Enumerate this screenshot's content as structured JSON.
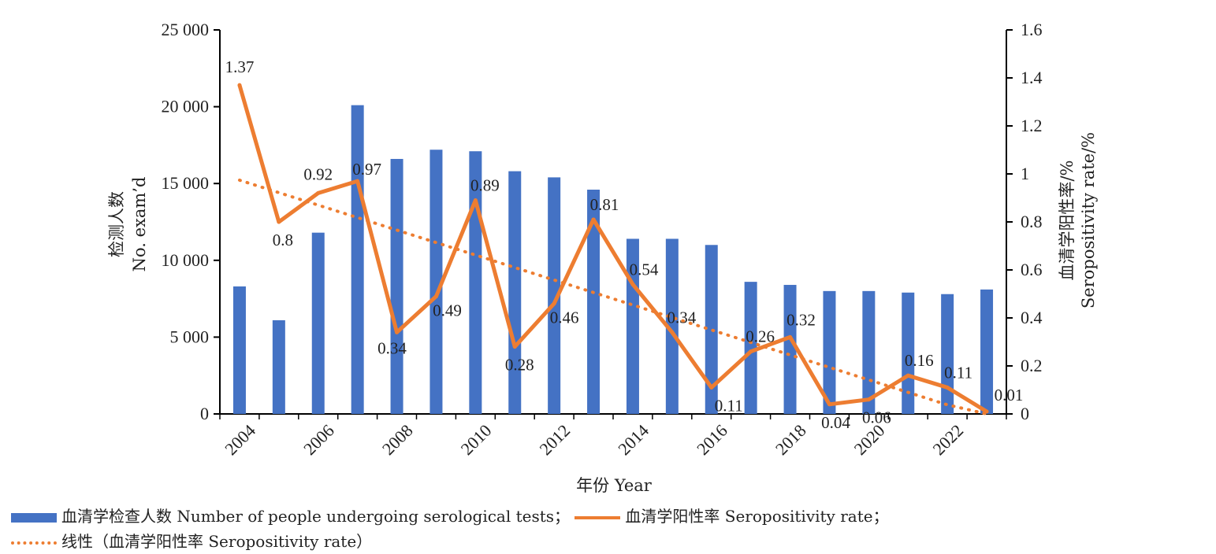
{
  "colors": {
    "bar": "#4472C4",
    "line": "#ED7D31",
    "axis": "#000000"
  },
  "chart_data": {
    "type": "bar+line",
    "x": [
      2004,
      2005,
      2006,
      2007,
      2008,
      2009,
      2010,
      2011,
      2012,
      2013,
      2014,
      2015,
      2016,
      2017,
      2018,
      2019,
      2020,
      2021,
      2022,
      2023
    ],
    "x_tick_labels": [
      "2004",
      "2006",
      "2008",
      "2010",
      "2012",
      "2014",
      "2016",
      "2018",
      "2020",
      "2022"
    ],
    "xlabel": "年份 Year",
    "y_left": {
      "label_cn": "检测人数",
      "label_en": "No. exam’d",
      "range": [
        0,
        25000
      ],
      "ticks": [
        0,
        5000,
        10000,
        15000,
        20000,
        25000
      ],
      "tick_labels": [
        "0",
        "5 000",
        "10 000",
        "15 000",
        "20 000",
        "25 000"
      ]
    },
    "y_right": {
      "label_cn": "血清学阳性率/%",
      "label_en": "Seropositivity  rate/%",
      "range": [
        0,
        1.6
      ],
      "ticks": [
        0,
        0.2,
        0.4,
        0.6,
        0.8,
        1,
        1.2,
        1.4,
        1.6
      ],
      "tick_labels": [
        "0",
        "0.2",
        "0.4",
        "0.6",
        "0.8",
        "1",
        "1.2",
        "1.4",
        "1.6"
      ]
    },
    "series": [
      {
        "name": "血清学检查人数 Number of people undergoing serological tests",
        "type": "bar",
        "axis": "left",
        "values": [
          8300,
          6100,
          11800,
          20100,
          16600,
          17200,
          17100,
          15800,
          15400,
          14600,
          11400,
          11400,
          11000,
          8600,
          8400,
          8000,
          8000,
          7900,
          7800,
          8100
        ]
      },
      {
        "name": "血清学阳性率 Seropositivity rate",
        "type": "line",
        "axis": "right",
        "values": [
          1.37,
          0.8,
          0.92,
          0.97,
          0.34,
          0.49,
          0.89,
          0.28,
          0.46,
          0.81,
          0.54,
          0.34,
          0.11,
          0.26,
          0.32,
          0.04,
          0.06,
          0.16,
          0.11,
          0.01
        ],
        "data_labels": [
          "1.37",
          "0.8",
          "0.92",
          "0.97",
          "0.34",
          "0.49",
          "0.89",
          "0.28",
          "0.46",
          "0.81",
          "0.54",
          "0.34",
          "0.11",
          "0.26",
          "0.32",
          "0.04",
          "0.06",
          "0.16",
          "0.11",
          "0.01"
        ]
      },
      {
        "name": "线性（血清学阳性率 Seropositivity rate）",
        "type": "trendline",
        "axis": "right",
        "values": [
          0.974,
          0.922,
          0.87,
          0.818,
          0.766,
          0.714,
          0.662,
          0.61,
          0.558,
          0.506,
          0.454,
          0.402,
          0.35,
          0.298,
          0.246,
          0.194,
          0.142,
          0.09,
          0.038,
          0.0
        ]
      }
    ]
  },
  "legend": {
    "bar_label": "血清学检查人数 Number of people undergoing serological tests；",
    "line_label": "血清学阳性率 Seropositivity rate；",
    "trend_label": "线性（血清学阳性率 Seropositivity rate）"
  }
}
